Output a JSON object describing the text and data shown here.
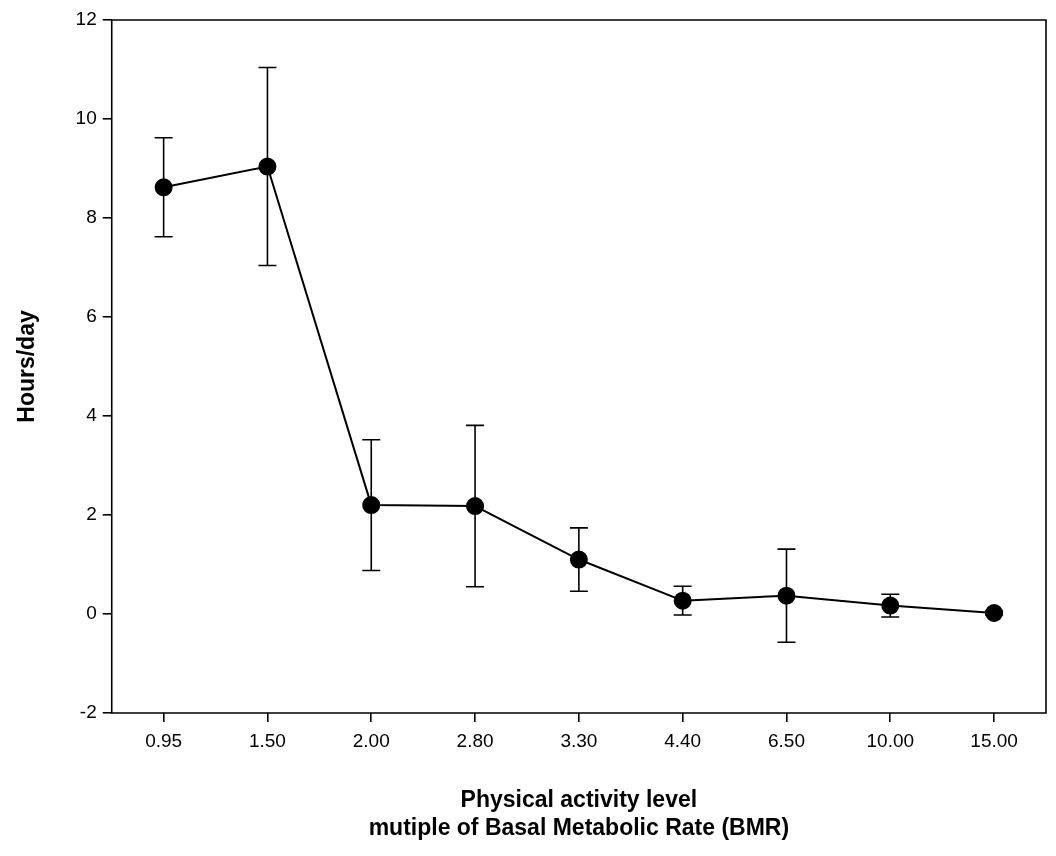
{
  "chart_data": {
    "type": "line",
    "xlabel": "Physical activity level\nmutiple of Basal Metabolic Rate (BMR)",
    "ylabel": "Hours/day",
    "categories": [
      "0.95",
      "1.50",
      "2.00",
      "2.80",
      "3.30",
      "4.40",
      "6.50",
      "10.00",
      "15.00"
    ],
    "series": [
      {
        "color": "#000000",
        "values": [
          8.62,
          9.04,
          2.2,
          2.18,
          1.1,
          0.27,
          0.37,
          0.17,
          0.02
        ],
        "errors": [
          1.0,
          2.0,
          1.32,
          1.63,
          0.64,
          0.29,
          0.94,
          0.23,
          0.04
        ]
      }
    ],
    "ylim": [
      -2,
      12
    ],
    "yticks": [
      -2,
      0,
      2,
      4,
      6,
      8,
      10,
      12
    ],
    "grid": false,
    "legend": false,
    "marker": "circle",
    "line_style": "solid"
  }
}
